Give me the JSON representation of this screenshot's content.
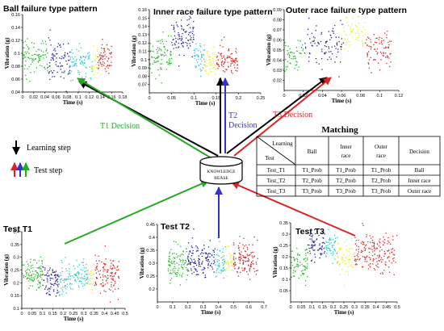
{
  "colors": {
    "green": "#22bb22",
    "blue": "#2222aa",
    "cyan": "#22cccc",
    "yellow": "#eeee33",
    "red": "#dd2222",
    "black": "#000000",
    "decision_green": "#22aa22",
    "decision_blue": "#3333cc",
    "decision_red": "#dd2222"
  },
  "chart_data": [
    {
      "id": "ball",
      "type": "scatter",
      "title": "Ball failure type pattern",
      "xlabel": "Time (s)",
      "ylabel": "Vibration (g)",
      "xlim": [
        0,
        0.18
      ],
      "ylim": [
        0.04,
        0.16
      ],
      "xticks": [
        "0",
        "0.02",
        "0.04",
        "0.06",
        "0.08",
        "0.1",
        "0.12",
        "0.14",
        "0.16",
        "0.18"
      ],
      "yticks": [
        "0.04",
        "0.06",
        "0.08",
        "0.1",
        "0.12",
        "0.14",
        "0.16"
      ],
      "series": [
        {
          "color": "green",
          "x_range": [
            0,
            0.045
          ],
          "mean": 0.095,
          "spread": 0.014,
          "count": 90
        },
        {
          "color": "blue",
          "x_range": [
            0.045,
            0.085
          ],
          "mean": 0.09,
          "spread": 0.014,
          "count": 80
        },
        {
          "color": "cyan",
          "x_range": [
            0.085,
            0.125
          ],
          "mean": 0.085,
          "spread": 0.013,
          "count": 80
        },
        {
          "color": "yellow",
          "x_range": [
            0.125,
            0.135
          ],
          "mean": 0.09,
          "spread": 0.012,
          "count": 20
        },
        {
          "color": "red",
          "x_range": [
            0.135,
            0.16
          ],
          "mean": 0.092,
          "spread": 0.01,
          "count": 60
        }
      ]
    },
    {
      "id": "inner",
      "type": "scatter",
      "title": "Inner race failure type pattern",
      "xlabel": "Time (s)",
      "ylabel": "Vibration (g)",
      "xlim": [
        0,
        0.25
      ],
      "ylim": [
        0.06,
        0.16
      ],
      "xticks": [
        "0",
        "0.05",
        "0.1",
        "0.15",
        "0.2",
        "0.25"
      ],
      "yticks": [
        "0.07",
        "0.08",
        "0.09",
        "0.1",
        "0.11",
        "0.12",
        "0.13",
        "0.14",
        "0.15",
        "0.16"
      ],
      "series": [
        {
          "color": "green",
          "x_range": [
            0,
            0.05
          ],
          "mean": 0.105,
          "spread": 0.011,
          "count": 90
        },
        {
          "color": "blue",
          "x_range": [
            0.05,
            0.1
          ],
          "mean": 0.128,
          "spread": 0.013,
          "count": 90
        },
        {
          "color": "cyan",
          "x_range": [
            0.1,
            0.125
          ],
          "mean": 0.102,
          "spread": 0.01,
          "count": 50
        },
        {
          "color": "yellow",
          "x_range": [
            0.125,
            0.15
          ],
          "mean": 0.095,
          "spread": 0.009,
          "count": 45
        },
        {
          "color": "red",
          "x_range": [
            0.15,
            0.2
          ],
          "mean": 0.1,
          "spread": 0.01,
          "count": 90
        }
      ]
    },
    {
      "id": "outer",
      "type": "scatter",
      "title": "Outer race failure type pattern",
      "xlabel": "Time (s)",
      "ylabel": "Vibration (g)",
      "xlim": [
        0,
        0.12
      ],
      "ylim": [
        0.01,
        0.09
      ],
      "xticks": [
        "0",
        "0.02",
        "0.04",
        "0.06",
        "0.08",
        "0.1",
        "0.12"
      ],
      "yticks": [
        "0.02",
        "0.03",
        "0.04",
        "0.05",
        "0.06",
        "0.07",
        "0.08",
        "0.09"
      ],
      "series": [
        {
          "color": "green",
          "x_range": [
            0,
            0.02
          ],
          "mean": 0.047,
          "spread": 0.009,
          "count": 50
        },
        {
          "color": "blue",
          "x_range": [
            0.02,
            0.062
          ],
          "mean": 0.055,
          "spread": 0.011,
          "count": 90
        },
        {
          "color": "yellow",
          "x_range": [
            0.062,
            0.085
          ],
          "mean": 0.068,
          "spread": 0.009,
          "count": 60
        },
        {
          "color": "red",
          "x_range": [
            0.085,
            0.112
          ],
          "mean": 0.05,
          "spread": 0.009,
          "count": 80
        }
      ]
    },
    {
      "id": "t1",
      "type": "scatter",
      "title": "Test T1",
      "xlabel": "Time (s)",
      "ylabel": "Vibration (g)",
      "xlim": [
        0,
        0.5
      ],
      "ylim": [
        0.1,
        0.4
      ],
      "xticks": [
        "0",
        "0.05",
        "0.1",
        "0.15",
        "0.2",
        "0.25",
        "0.3",
        "0.35",
        "0.4",
        "0.45",
        "0.5"
      ],
      "yticks": [
        "0.1",
        "0.15",
        "0.2",
        "0.25",
        "0.3",
        "0.35",
        "0.4"
      ],
      "series": [
        {
          "color": "green",
          "x_range": [
            0,
            0.1
          ],
          "mean": 0.23,
          "spread": 0.03,
          "count": 100
        },
        {
          "color": "blue",
          "x_range": [
            0.1,
            0.18
          ],
          "mean": 0.21,
          "spread": 0.03,
          "count": 80
        },
        {
          "color": "cyan",
          "x_range": [
            0.18,
            0.32
          ],
          "mean": 0.22,
          "spread": 0.03,
          "count": 120
        },
        {
          "color": "yellow",
          "x_range": [
            0.32,
            0.35
          ],
          "mean": 0.22,
          "spread": 0.025,
          "count": 30
        },
        {
          "color": "red",
          "x_range": [
            0.35,
            0.47
          ],
          "mean": 0.23,
          "spread": 0.035,
          "count": 110
        }
      ]
    },
    {
      "id": "t2",
      "type": "scatter",
      "title": "Test T2",
      "xlabel": "Time (s)",
      "ylabel": "Vibration (g)",
      "xlim": [
        0,
        0.7
      ],
      "ylim": [
        0.15,
        0.45
      ],
      "xticks": [
        "0",
        "0.1",
        "0.2",
        "0.3",
        "0.4",
        "0.5",
        "0.6",
        "0.7"
      ],
      "yticks": [
        "0.2",
        "0.25",
        "0.3",
        "0.35",
        "0.4",
        "0.45"
      ],
      "series": [
        {
          "color": "green",
          "x_range": [
            0.07,
            0.2
          ],
          "mean": 0.3,
          "spread": 0.035,
          "count": 100
        },
        {
          "color": "blue",
          "x_range": [
            0.2,
            0.38
          ],
          "mean": 0.32,
          "spread": 0.035,
          "count": 130
        },
        {
          "color": "cyan",
          "x_range": [
            0.38,
            0.45
          ],
          "mean": 0.3,
          "spread": 0.03,
          "count": 50
        },
        {
          "color": "yellow",
          "x_range": [
            0.45,
            0.5
          ],
          "mean": 0.3,
          "spread": 0.03,
          "count": 40
        },
        {
          "color": "red",
          "x_range": [
            0.5,
            0.66
          ],
          "mean": 0.31,
          "spread": 0.035,
          "count": 120
        }
      ]
    },
    {
      "id": "t3",
      "type": "scatter",
      "title": "Test T3",
      "xlabel": "Time (s)",
      "ylabel": "Vibration (g)",
      "xlim": [
        0,
        0.5
      ],
      "ylim": [
        0,
        0.35
      ],
      "xticks": [
        "0",
        "0.05",
        "0.1",
        "0.15",
        "0.2",
        "0.25",
        "0.3",
        "0.35",
        "0.4",
        "0.45",
        "0.5"
      ],
      "yticks": [
        "0.05",
        "0.1",
        "0.15",
        "0.2",
        "0.25",
        "0.3",
        "0.35"
      ],
      "series": [
        {
          "color": "green",
          "x_range": [
            0,
            0.08
          ],
          "mean": 0.17,
          "spread": 0.035,
          "count": 70
        },
        {
          "color": "blue",
          "x_range": [
            0.08,
            0.16
          ],
          "mean": 0.25,
          "spread": 0.035,
          "count": 70
        },
        {
          "color": "cyan",
          "x_range": [
            0.16,
            0.22
          ],
          "mean": 0.24,
          "spread": 0.03,
          "count": 50
        },
        {
          "color": "yellow",
          "x_range": [
            0.22,
            0.3
          ],
          "mean": 0.2,
          "spread": 0.035,
          "count": 70
        },
        {
          "color": "red",
          "x_range": [
            0.3,
            0.5
          ],
          "mean": 0.22,
          "spread": 0.045,
          "count": 170
        }
      ]
    }
  ],
  "decisions": {
    "t1": "T1 Decision",
    "t2_line1": "T2",
    "t2_line2": "Decision",
    "t3": "T3 Decision"
  },
  "knowledge_base": {
    "line1": "KNOWLEDGE",
    "line2": "BEASE"
  },
  "legend": {
    "learning": "Learning step",
    "test": "Test step"
  },
  "matching": {
    "title": "Matching",
    "header": {
      "corner_top": "Learning",
      "corner_bottom": "Test",
      "ball": "Ball",
      "inner_line1": "Inner",
      "inner_line2": "race",
      "outer_line1": "Outer",
      "outer_line2": "race",
      "decision": "Decision"
    },
    "rows": [
      {
        "test": "Test_T1",
        "ball": "T1_Prob",
        "inner": "T1_Prob",
        "outer": "T1_Prob",
        "decision": "Ball"
      },
      {
        "test": "Test_T2",
        "ball": "T2_Prob",
        "inner": "T2_Prob",
        "outer": "T2_Prob",
        "decision": "Inner race"
      },
      {
        "test": "Test_T3",
        "ball": "T3_Prob",
        "inner": "T3_Prob",
        "outer": "T3_Prob",
        "decision": "Outer race"
      }
    ]
  }
}
